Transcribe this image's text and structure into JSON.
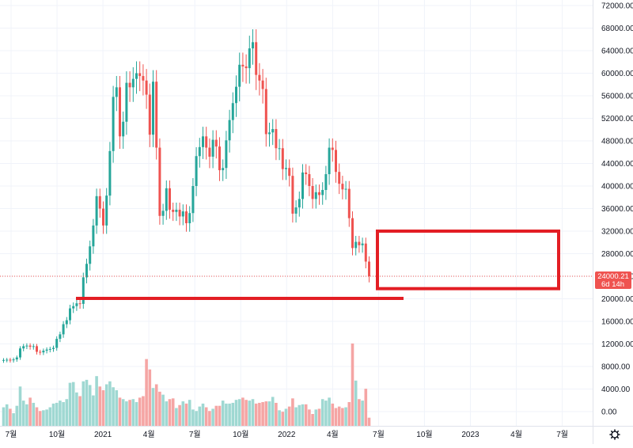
{
  "colors": {
    "up": "#26a69a",
    "down": "#ef5350",
    "vol_up": "#9fd8d2",
    "vol_down": "#f5a5a4",
    "annotation": "#e31e24",
    "price_tag": "#ef5350",
    "grid": "#f0f3fa",
    "axis_text": "#131722",
    "settings_icon": "#131722"
  },
  "settings_icon": "gear-icon",
  "chart_data": {
    "type": "candlestick",
    "interval": "weekly",
    "price_range": [
      0,
      72000
    ],
    "volume_range": [
      0,
      8000
    ],
    "y_ticks": [
      "72000.00",
      "68000.00",
      "64000.00",
      "60000.00",
      "56000.00",
      "52000.00",
      "48000.00",
      "44000.00",
      "40000.00",
      "36000.00",
      "32000.00",
      "28000.00",
      "24000.00",
      "20000.00",
      "16000.00",
      "12000.00",
      "8000.00",
      "4000.00",
      "0.00"
    ],
    "x_ticks": [
      "7월",
      "10월",
      "2021",
      "4월",
      "7월",
      "10월",
      "2022",
      "4월",
      "7월",
      "10월",
      "2023",
      "4월",
      "7월"
    ],
    "last_price": {
      "value": 24000.21,
      "label": "24000.21",
      "countdown": "6d 14h"
    },
    "close_series": [
      9150,
      9200,
      9100,
      9250,
      9600,
      11200,
      11600,
      11700,
      11500,
      11600,
      10600,
      10500,
      10800,
      11000,
      11100,
      11300,
      12900,
      13700,
      15500,
      16200,
      18300,
      18700,
      19200,
      19100,
      23800,
      26200,
      29300,
      33000,
      38200,
      36000,
      33000,
      38300,
      46200,
      55800,
      57500,
      48800,
      51400,
      58300,
      57500,
      59000,
      60000,
      59500,
      58700,
      56200,
      49100,
      58500,
      46800,
      34700,
      35600,
      39600,
      35800,
      35400,
      35800,
      34600,
      35500,
      33400,
      35200,
      40000,
      45300,
      46900,
      48800,
      46800,
      45200,
      48200,
      47000,
      42800,
      43200,
      48100,
      51700,
      54700,
      57600,
      61500,
      61200,
      60900,
      64400,
      65500,
      59700,
      58700,
      57200,
      49200,
      49500,
      50100,
      46700,
      46700,
      43000,
      43200,
      41800,
      35100,
      36200,
      37700,
      42400,
      42100,
      40000,
      37700,
      38900,
      38400,
      39300,
      42100,
      46800,
      46400,
      42500,
      40400,
      39400,
      39500,
      34300,
      29000,
      30100,
      29500,
      29800,
      26600,
      24000
    ],
    "volume_series": [
      2500,
      2900,
      2300,
      1700,
      2700,
      5300,
      3400,
      2900,
      3800,
      3100,
      2500,
      2000,
      2100,
      2200,
      2500,
      3000,
      3100,
      3400,
      3200,
      3600,
      5800,
      5900,
      4500,
      4000,
      6000,
      6200,
      5500,
      4100,
      6700,
      5300,
      4800,
      5600,
      6000,
      5200,
      4800,
      3800,
      3600,
      3300,
      3500,
      3600,
      3200,
      3800,
      4000,
      9000,
      7600,
      5100,
      5600,
      4600,
      4200,
      3300,
      3600,
      3700,
      2400,
      2800,
      3300,
      3000,
      3500,
      2200,
      2000,
      2600,
      3000,
      2500,
      2000,
      2300,
      2700,
      2700,
      3400,
      3000,
      3000,
      3100,
      3500,
      3600,
      3800,
      3500,
      3400,
      3600,
      3000,
      3100,
      3200,
      3300,
      3300,
      3900,
      3100,
      2100,
      1900,
      2300,
      2600,
      3700,
      2500,
      2800,
      2900,
      2900,
      2200,
      1600,
      2200,
      2300,
      3600,
      3400,
      3800,
      3000,
      2400,
      2600,
      2400,
      2500,
      3200,
      11100,
      6100,
      3600,
      3400,
      5000,
      1100
    ]
  },
  "annotations": [
    {
      "type": "horizontal_line",
      "price": 20000
    },
    {
      "type": "rectangle",
      "price_top": 32000,
      "price_bottom": 21800
    }
  ]
}
